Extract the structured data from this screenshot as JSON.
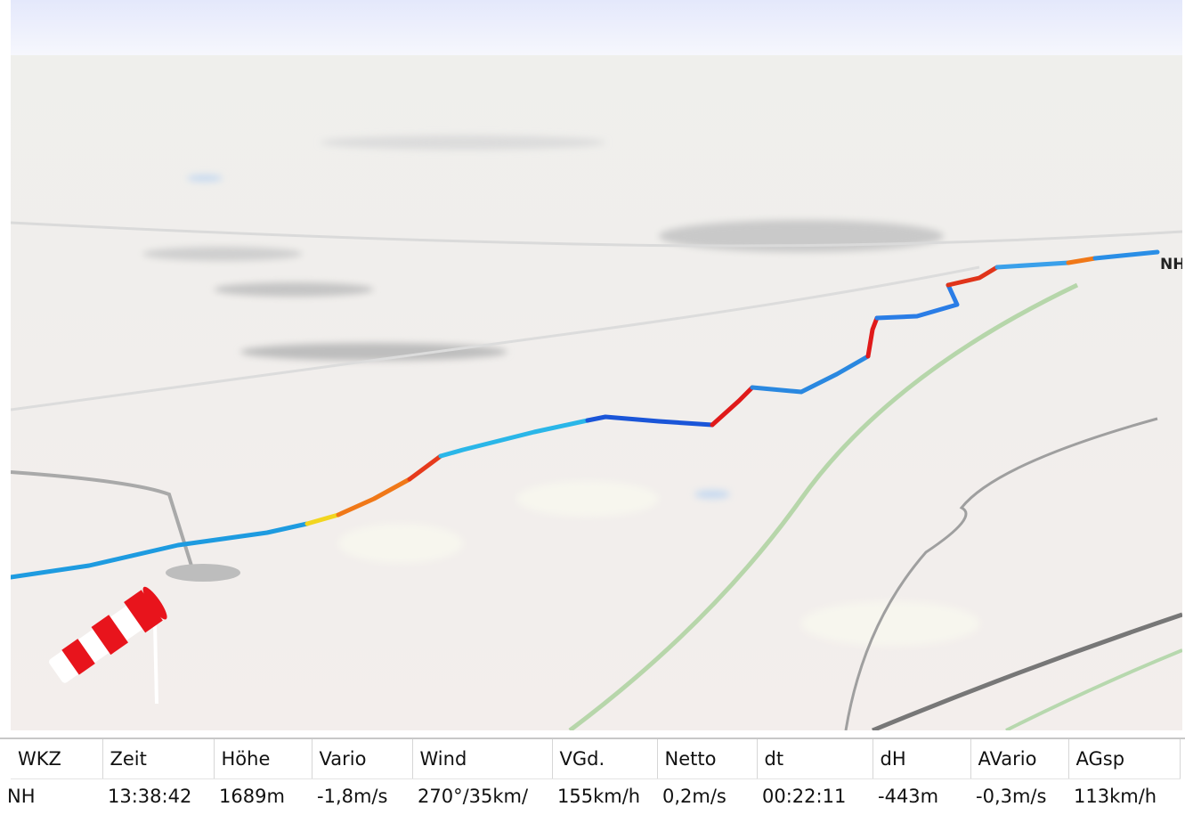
{
  "map": {
    "label": "NH"
  },
  "table": {
    "headers": [
      "WKZ",
      "Zeit",
      "Höhe",
      "Vario",
      "Wind",
      "VGd.",
      "Netto",
      "dt",
      "dH",
      "AVario",
      "AGsp"
    ],
    "rows": [
      [
        "NH",
        "13:38:42",
        "1689m",
        "-1,8m/s",
        "270°/35km/",
        "155km/h",
        "0,2m/s",
        "00:22:11",
        "-443m",
        "-0,3m/s",
        "113km/h"
      ]
    ]
  }
}
